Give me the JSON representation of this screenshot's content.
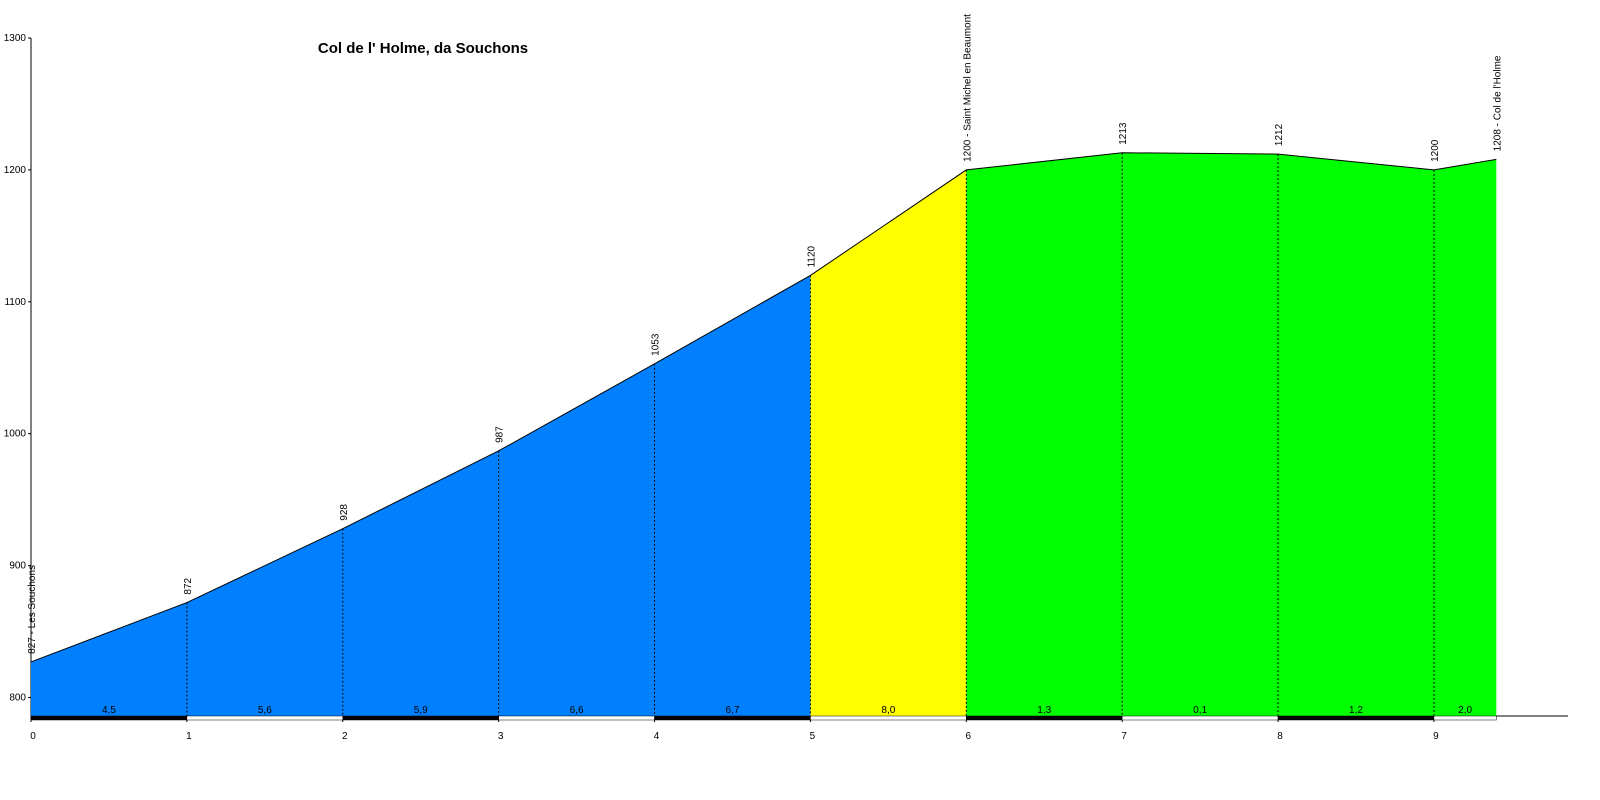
{
  "chart_data": {
    "type": "elevation-profile",
    "title": "Col de l' Holme, da Souchons",
    "x": [
      0,
      1,
      2,
      3,
      4,
      5,
      6,
      7,
      8,
      9,
      9.4
    ],
    "values": [
      827,
      872,
      928,
      987,
      1053,
      1120,
      1200,
      1213,
      1212,
      1200,
      1208
    ],
    "value_labels": [
      "827 - Les Souchons",
      "872",
      "928",
      "987",
      "1053",
      "1120",
      "1200 - Saint Michel en Beaumont",
      "1213",
      "1212",
      "1200",
      "1208 - Col de l'Holme"
    ],
    "gradients": [
      4.5,
      5.6,
      5.9,
      6.6,
      6.7,
      8.0,
      1.3,
      0.1,
      1.2,
      2.0
    ],
    "gradient_labels": [
      "4,5",
      "5,6",
      "5,9",
      "6,6",
      "6,7",
      "8,0",
      "1,3",
      "0,1",
      "1,2",
      "2,0"
    ],
    "segment_colors": [
      "#0080ff",
      "#0080ff",
      "#0080ff",
      "#0080ff",
      "#0080ff",
      "#ffff00",
      "#00ff00",
      "#00ff00",
      "#00ff00",
      "#00ff00"
    ],
    "xlim": [
      0,
      9.86
    ],
    "xticks": [
      0,
      1,
      2,
      3,
      4,
      5,
      6,
      7,
      8,
      9
    ],
    "ylim": [
      786,
      1300
    ],
    "yticks": [
      800,
      900,
      1000,
      1100,
      1200,
      1300
    ]
  }
}
